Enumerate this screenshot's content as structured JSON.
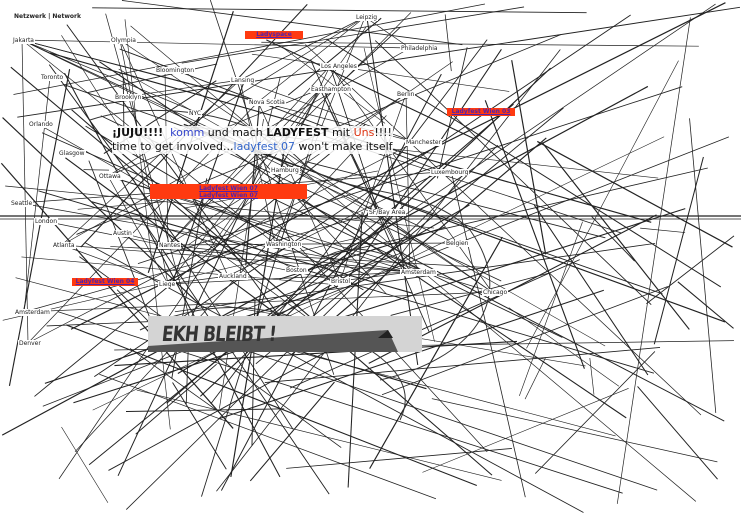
{
  "header": "Netzwerk | Network",
  "cities": [
    "Jakarta",
    "Olympia",
    "Leipzig",
    "Philadelphia",
    "Bloomington",
    "Los Angeles",
    "Toronto",
    "Lansing",
    "Easthampton",
    "Berlin",
    "Brooklyn",
    "NYC",
    "Nova Scotia",
    "Orlando",
    "Manchester",
    "Glasgow",
    "Ottawa",
    "Hamburg",
    "Luxembourg",
    "Seattle",
    "SF/Bay Area",
    "London",
    "Austin",
    "Washington",
    "Belgien",
    "Atlanta",
    "Nantes",
    "Boston",
    "Amsterdam",
    "Auckland",
    "Bristol",
    "Liege",
    "Chicago",
    "Amsterdam",
    "Denver"
  ],
  "buttons": [
    {
      "label": "Ladyspace"
    },
    {
      "label": "Ladyfest Wien 03"
    },
    {
      "label": "Ladyfest Wien 07",
      "label2": "Ladyfest Wien 07"
    },
    {
      "label": "Ladyfest Wien 04"
    }
  ],
  "message": {
    "line1": [
      "¡JUJU!!!!",
      "komm",
      "und mach",
      "LADYFEST",
      "mit",
      "Uns",
      "!!!!"
    ],
    "line2": [
      "time to get involved...",
      "ladyfest 07",
      "won't make itself"
    ]
  },
  "banner": "EKH BLEIBT !"
}
